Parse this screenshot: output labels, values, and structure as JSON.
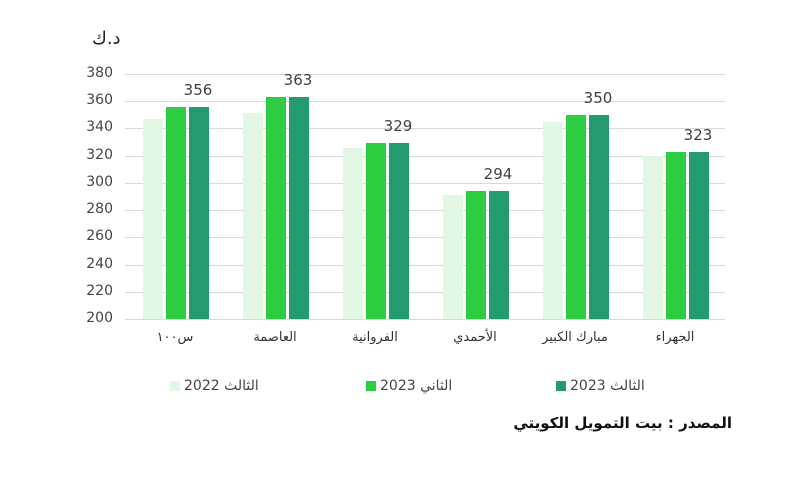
{
  "chart_data": {
    "type": "bar",
    "title": "",
    "ylabel": "د.ك",
    "xlabel": "",
    "ylim": [
      200,
      380
    ],
    "yticks": [
      200,
      220,
      240,
      260,
      280,
      300,
      320,
      340,
      360,
      380
    ],
    "grid": true,
    "legend_position": "bottom",
    "categories": [
      "...",
      "العاصمة",
      "الفروانية",
      "الأحمدي",
      "مبارك الكبير",
      "الجهراء"
    ],
    "series": [
      {
        "name": "الثالث 2022",
        "color": "#e2f7e4",
        "values": [
          347,
          351,
          326,
          291,
          345,
          320
        ]
      },
      {
        "name": "الثاني 2023",
        "color": "#2ecc40",
        "values": [
          356,
          363,
          329,
          294,
          350,
          323
        ]
      },
      {
        "name": "الثالث 2023",
        "color": "#239b6f",
        "values": [
          356,
          363,
          329,
          294,
          350,
          323
        ]
      }
    ],
    "data_labels": [
      356,
      363,
      329,
      294,
      350,
      323
    ],
    "source": "المصدر : بيت التمويل الكويتي"
  },
  "labels": {
    "unit": "د.ك",
    "first_category_display": "س١٠٠",
    "source": "المصدر : بيت التمويل الكويتي"
  }
}
